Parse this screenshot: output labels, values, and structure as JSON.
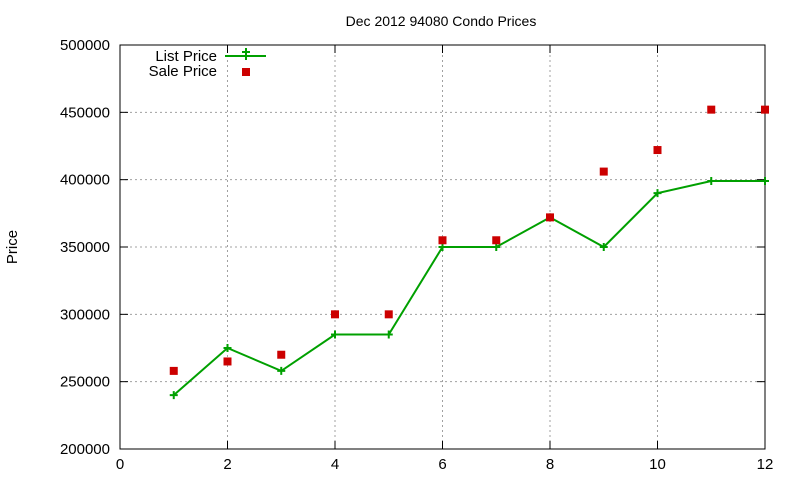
{
  "chart_data": {
    "type": "line",
    "title": "Dec 2012 94080 Condo Prices",
    "xlabel": "",
    "ylabel": "Price",
    "xlim": [
      0,
      12
    ],
    "ylim": [
      200000,
      500000
    ],
    "x_ticks": [
      0,
      2,
      4,
      6,
      8,
      10,
      12
    ],
    "y_ticks": [
      200000,
      250000,
      300000,
      350000,
      400000,
      450000,
      500000
    ],
    "grid": true,
    "legend_position": "top-left",
    "x": [
      1,
      2,
      3,
      4,
      5,
      6,
      7,
      8,
      9,
      10,
      11,
      12
    ],
    "series": [
      {
        "name": "List Price",
        "style": "line-with-plus-markers",
        "color": "#00a000",
        "values": [
          240000,
          275000,
          258000,
          285000,
          285000,
          350000,
          350000,
          372000,
          350000,
          390000,
          399000,
          399000
        ]
      },
      {
        "name": "Sale Price",
        "style": "square-markers",
        "color": "#cc0000",
        "values": [
          258000,
          265000,
          270000,
          300000,
          300000,
          355000,
          355000,
          372000,
          406000,
          422000,
          452000,
          452000
        ]
      }
    ]
  }
}
